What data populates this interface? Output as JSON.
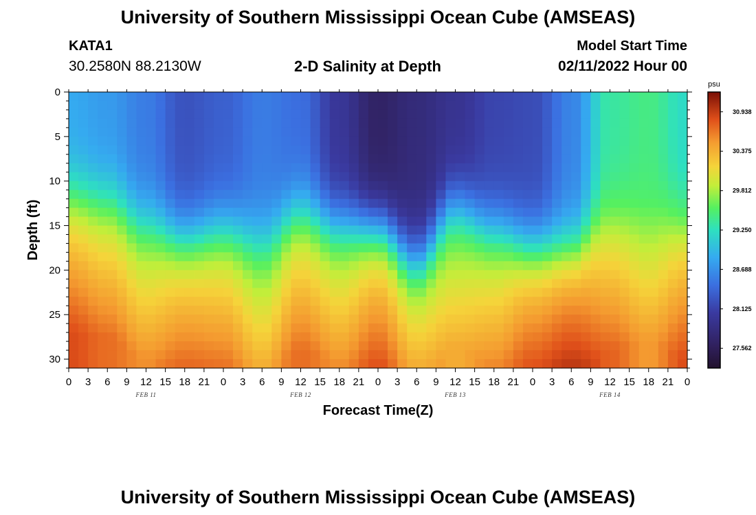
{
  "header": {
    "title": "University of Southern Mississippi Ocean Cube (AMSEAS)",
    "station": "KATA1",
    "coords": "30.2580N  88.2130W",
    "subtitle": "2-D Salinity at Depth",
    "model_start_label": "Model Start Time",
    "model_start_value": "02/11/2022 Hour 00"
  },
  "footer": {
    "title": "University of Southern Mississippi Ocean Cube (AMSEAS)"
  },
  "chart_data": {
    "type": "heatmap",
    "title": "2-D Salinity at Depth",
    "xlabel": "Forecast Time(Z)",
    "ylabel": "Depth (ft)",
    "x_hours_range": [
      0,
      96
    ],
    "x_tick_step_hours": 3,
    "x_tick_labels": [
      "0",
      "3",
      "6",
      "9",
      "12",
      "15",
      "18",
      "21",
      "0",
      "3",
      "6",
      "9",
      "12",
      "15",
      "18",
      "21",
      "0",
      "3",
      "6",
      "9",
      "12",
      "15",
      "18",
      "21",
      "0",
      "3",
      "6",
      "9",
      "12",
      "15",
      "18",
      "21",
      "0"
    ],
    "day_labels": [
      {
        "label": "FEB 11",
        "hour": 12
      },
      {
        "label": "FEB 12",
        "hour": 36
      },
      {
        "label": "FEB 13",
        "hour": 60
      },
      {
        "label": "FEB 14",
        "hour": 84
      }
    ],
    "y_range": [
      0,
      31
    ],
    "y_ticks": [
      "0",
      "5",
      "10",
      "15",
      "20",
      "25",
      "30"
    ],
    "colorbar": {
      "unit": "psu",
      "range": [
        27.28,
        31.22
      ],
      "ticks": [
        "30.938",
        "30.375",
        "29.812",
        "29.250",
        "28.688",
        "28.125",
        "27.562"
      ]
    },
    "field": {
      "description": "Salinity (psu) vs forecast hour and depth; halocline depth and deep-water salinity per hour",
      "halocline_depth_by_hour": [
        [
          0,
          11
        ],
        [
          6,
          11.5
        ],
        [
          12,
          14
        ],
        [
          18,
          16
        ],
        [
          24,
          15
        ],
        [
          30,
          16
        ],
        [
          36,
          13
        ],
        [
          42,
          14.5
        ],
        [
          48,
          15
        ],
        [
          54,
          18.5
        ],
        [
          60,
          12.5
        ],
        [
          66,
          15
        ],
        [
          72,
          17
        ],
        [
          78,
          17
        ],
        [
          84,
          13
        ],
        [
          90,
          12
        ],
        [
          96,
          14
        ]
      ],
      "surface_salinity_by_hour": [
        [
          0,
          28.85
        ],
        [
          6,
          28.75
        ],
        [
          12,
          28.55
        ],
        [
          18,
          28.25
        ],
        [
          24,
          28.35
        ],
        [
          30,
          28.55
        ],
        [
          36,
          28.45
        ],
        [
          42,
          28.0
        ],
        [
          48,
          27.65
        ],
        [
          54,
          27.8
        ],
        [
          60,
          27.95
        ],
        [
          66,
          28.15
        ],
        [
          72,
          28.2
        ],
        [
          78,
          28.6
        ],
        [
          84,
          29.35
        ],
        [
          90,
          29.45
        ],
        [
          96,
          29.2
        ]
      ],
      "bottom_salinity_by_hour": [
        [
          0,
          30.85
        ],
        [
          6,
          30.7
        ],
        [
          12,
          30.55
        ],
        [
          18,
          30.8
        ],
        [
          24,
          30.7
        ],
        [
          30,
          30.45
        ],
        [
          36,
          30.7
        ],
        [
          42,
          30.55
        ],
        [
          48,
          30.85
        ],
        [
          54,
          30.6
        ],
        [
          60,
          30.4
        ],
        [
          66,
          30.6
        ],
        [
          72,
          30.95
        ],
        [
          78,
          31.1
        ],
        [
          84,
          30.75
        ],
        [
          90,
          30.5
        ],
        [
          96,
          30.85
        ]
      ]
    }
  }
}
